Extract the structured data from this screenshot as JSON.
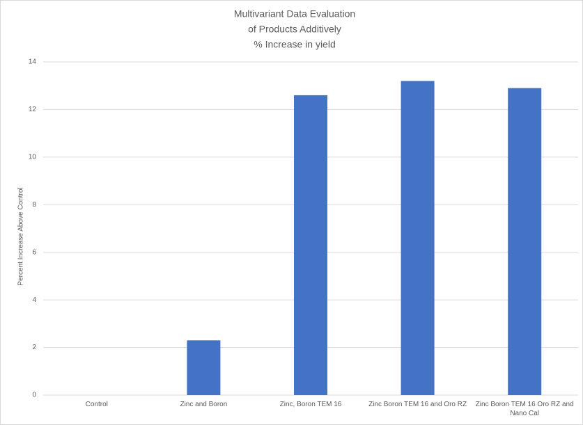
{
  "chart_data": {
    "type": "bar",
    "title": [
      "Multivariant Data Evaluation",
      "of Products Additively",
      "% Increase in yield"
    ],
    "y_label": "Percent Increase Above Control",
    "categories": [
      "Control",
      "Zinc and Boron",
      "Zinc, Boron TEM 16",
      "Zinc Boron TEM 16 and Oro RZ",
      "Zinc Boron TEM 16 Oro RZ and Nano Cal"
    ],
    "values": [
      0,
      2.3,
      12.6,
      13.2,
      12.9
    ],
    "color": "#4472c4",
    "ylim": [
      0,
      14
    ],
    "yticks": [
      0,
      2,
      4,
      6,
      8,
      10,
      12,
      14
    ],
    "grid": true
  }
}
